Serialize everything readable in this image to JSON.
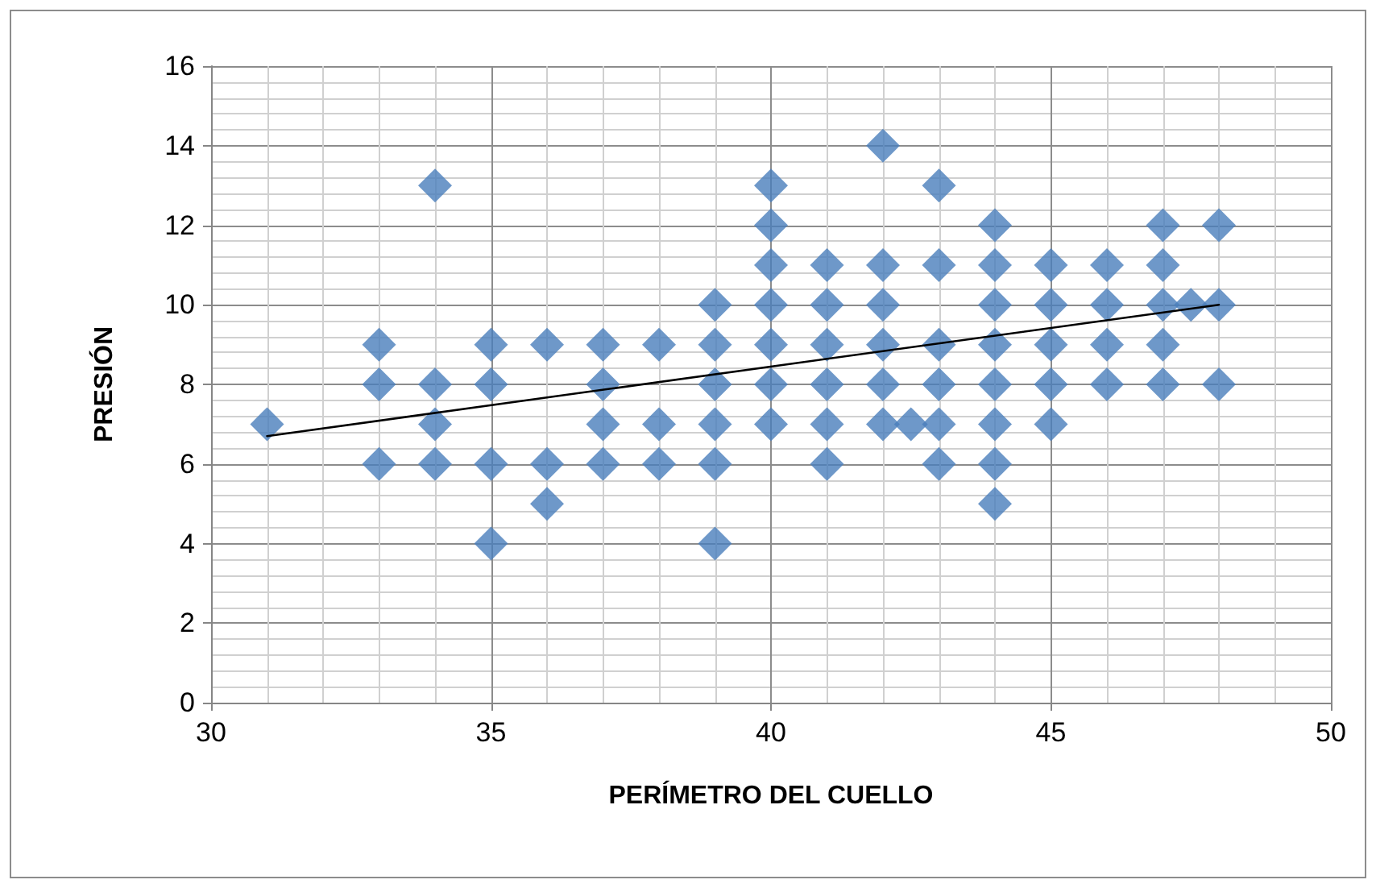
{
  "chart_data": {
    "type": "scatter",
    "xlabel": "PERÍMETRO DEL CUELLO",
    "ylabel": "PRESIÓN",
    "xlim": [
      30,
      50
    ],
    "xticks": [
      30,
      35,
      40,
      45,
      50
    ],
    "ylim": [
      0,
      16
    ],
    "yticks": [
      0,
      2,
      4,
      6,
      8,
      10,
      12,
      14,
      16
    ],
    "grid": true,
    "marker": "diamond",
    "series": [
      {
        "color": "#4a7ebb",
        "x": [
          31,
          33,
          33,
          33,
          34,
          34,
          34,
          34,
          35,
          35,
          35,
          35,
          36,
          36,
          36,
          37,
          37,
          37,
          37,
          38,
          38,
          38,
          39,
          39,
          39,
          39,
          39,
          39,
          40,
          40,
          40,
          40,
          40,
          40,
          40,
          41,
          41,
          41,
          41,
          41,
          41,
          42,
          42,
          42,
          42,
          42,
          42,
          42.5,
          43,
          43,
          43,
          43,
          43,
          43,
          44,
          44,
          44,
          44,
          44,
          44,
          44,
          44,
          45,
          45,
          45,
          45,
          45,
          46,
          46,
          46,
          46,
          47,
          47,
          47,
          47,
          47,
          47.5,
          48,
          48,
          48
        ],
        "values": [
          7,
          9,
          8,
          6,
          13,
          8,
          7,
          6,
          9,
          8,
          6,
          4,
          9,
          6,
          5,
          9,
          8,
          7,
          6,
          9,
          7,
          6,
          10,
          9,
          8,
          7,
          6,
          4,
          13,
          12,
          11,
          10,
          9,
          8,
          7,
          11,
          10,
          9,
          8,
          7,
          6,
          14,
          11,
          10,
          9,
          8,
          7,
          7,
          13,
          11,
          9,
          8,
          7,
          6,
          12,
          11,
          10,
          9,
          8,
          7,
          6,
          5,
          11,
          10,
          9,
          8,
          7,
          11,
          10,
          9,
          8,
          12,
          11,
          10,
          9,
          8,
          10,
          12,
          10,
          8
        ]
      },
      {
        "type": "line",
        "color": "#000000",
        "marker": "none",
        "x": [
          31,
          48
        ],
        "values": [
          6.7,
          10
        ]
      }
    ]
  }
}
